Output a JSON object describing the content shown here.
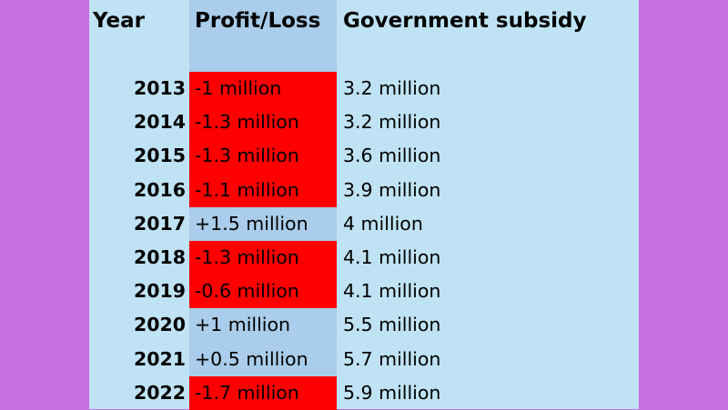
{
  "headers": {
    "year": "Year",
    "profit": "Profit/Loss",
    "subsidy": "Government subsidy"
  },
  "colors": {
    "background": "#c86ee3",
    "sheet": "#bfe3f4",
    "profit_column": "#a9cdea",
    "loss_highlight": "#ff0000"
  },
  "rows": [
    {
      "year": "2013",
      "profit": "-1 million",
      "subsidy": "3.2 million",
      "loss": true
    },
    {
      "year": "2014",
      "profit": "-1.3 million",
      "subsidy": "3.2 million",
      "loss": true
    },
    {
      "year": "2015",
      "profit": "-1.3 million",
      "subsidy": "3.6 million",
      "loss": true
    },
    {
      "year": "2016",
      "profit": "-1.1 million",
      "subsidy": "3.9 million",
      "loss": true
    },
    {
      "year": "2017",
      "profit": "+1.5 million",
      "subsidy": "4 million",
      "loss": false
    },
    {
      "year": "2018",
      "profit": "-1.3 million",
      "subsidy": "4.1 million",
      "loss": true
    },
    {
      "year": "2019",
      "profit": "-0.6 million",
      "subsidy": "4.1 million",
      "loss": true
    },
    {
      "year": "2020",
      "profit": "+1 million",
      "subsidy": "5.5 million",
      "loss": false
    },
    {
      "year": "2021",
      "profit": "+0.5 million",
      "subsidy": "5.7 million",
      "loss": false
    },
    {
      "year": "2022",
      "profit": "-1.7 million",
      "subsidy": "5.9 million",
      "loss": true
    }
  ]
}
